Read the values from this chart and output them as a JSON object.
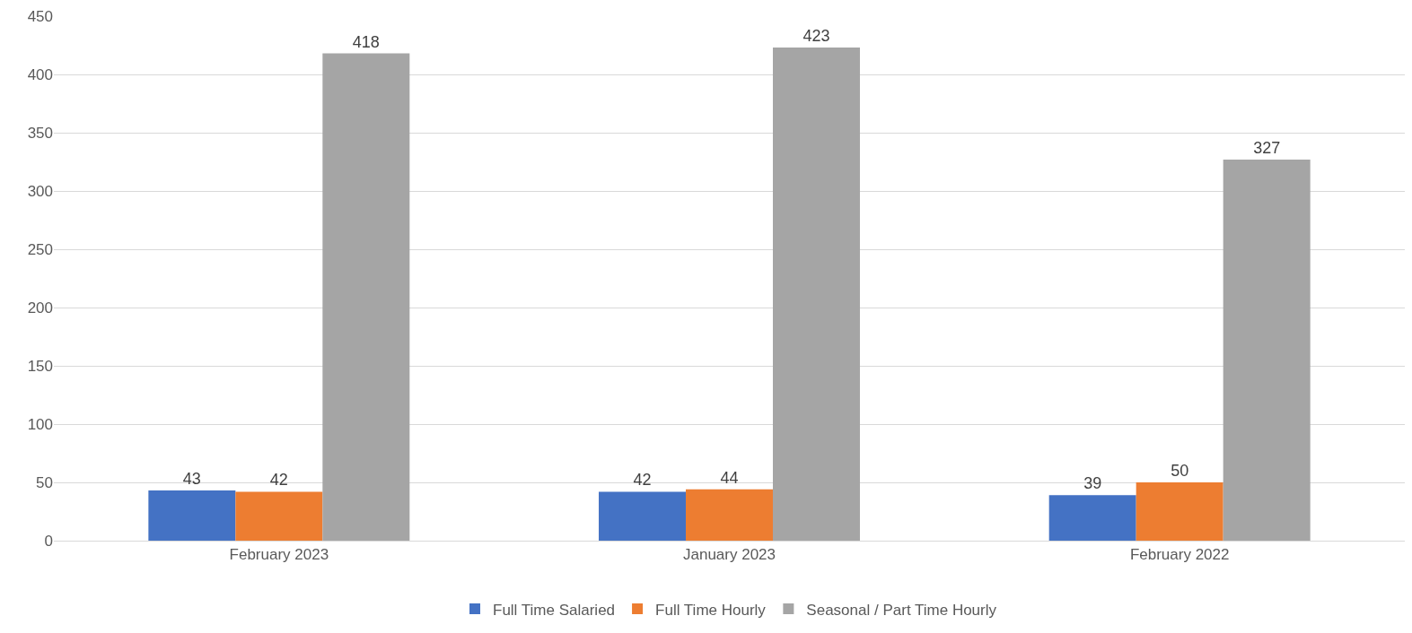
{
  "chart_data": {
    "type": "bar",
    "categories": [
      "February 2023",
      "January 2023",
      "February 2022"
    ],
    "series": [
      {
        "name": "Full Time Salaried",
        "color": "#4472c4",
        "values": [
          43,
          42,
          39
        ]
      },
      {
        "name": "Full Time Hourly",
        "color": "#ed7d31",
        "values": [
          42,
          44,
          50
        ]
      },
      {
        "name": "Seasonal / Part Time Hourly",
        "color": "#a5a5a5",
        "values": [
          418,
          423,
          327
        ]
      }
    ],
    "ylim": [
      0,
      450
    ],
    "yticks": [
      0,
      50,
      100,
      150,
      200,
      250,
      300,
      350,
      400,
      450
    ],
    "grid": "y",
    "legend": "bottom",
    "data_labels": true
  }
}
